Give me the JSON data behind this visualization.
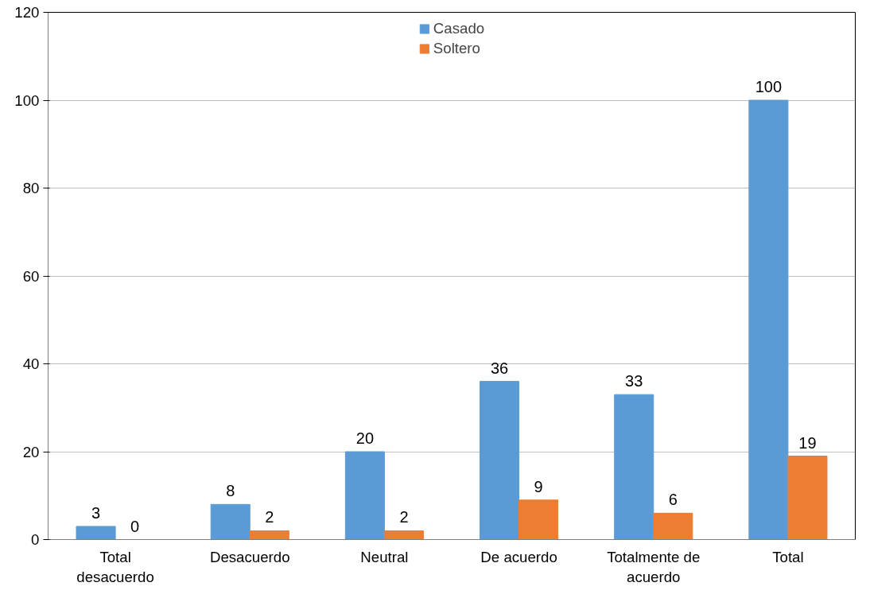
{
  "chart_data": {
    "type": "bar",
    "categories": [
      "Total desacuerdo",
      "Desacuerdo",
      "Neutral",
      "De acuerdo",
      "Totalmente de acuerdo",
      "Total"
    ],
    "series": [
      {
        "name": "Casado",
        "color": "#5b9bd5",
        "values": [
          3,
          8,
          20,
          36,
          33,
          100
        ]
      },
      {
        "name": "Soltero",
        "color": "#ed7d31",
        "values": [
          0,
          2,
          2,
          9,
          6,
          19
        ]
      }
    ],
    "ylim": [
      0,
      120
    ],
    "yticks": [
      0,
      20,
      40,
      60,
      80,
      100,
      120
    ],
    "grid": "y",
    "legend": "top",
    "data_labels": true
  }
}
